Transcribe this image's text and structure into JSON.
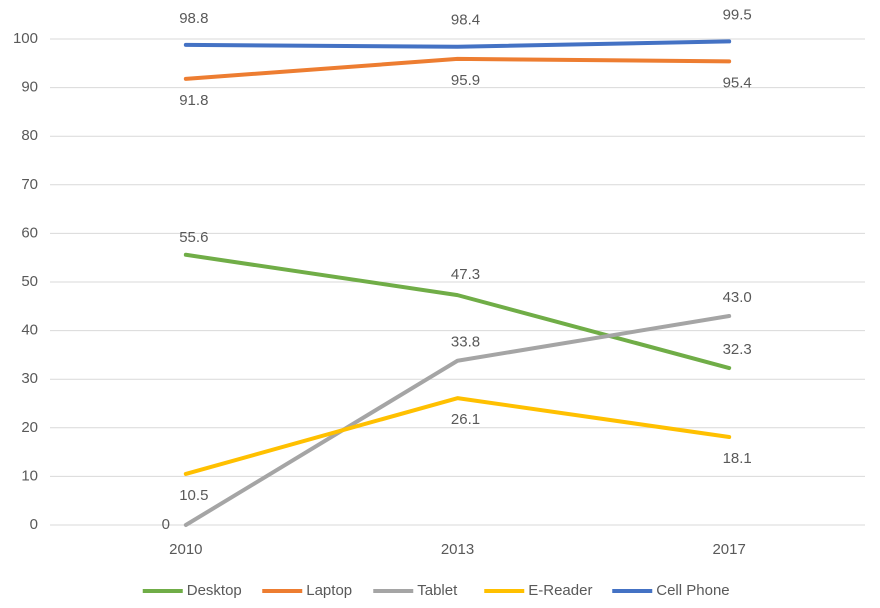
{
  "chart_data": {
    "type": "line",
    "categories": [
      "2010",
      "2013",
      "2017"
    ],
    "series": [
      {
        "name": "Desktop",
        "color": "#70ad47",
        "values": [
          55.6,
          47.3,
          32.3
        ]
      },
      {
        "name": "Laptop",
        "color": "#ed7d31",
        "values": [
          91.8,
          95.9,
          95.4
        ]
      },
      {
        "name": "Tablet",
        "color": "#a5a5a5",
        "values": [
          0,
          33.8,
          43.0
        ],
        "value_labels": [
          "0",
          "33.8",
          "43.0"
        ]
      },
      {
        "name": "E-Reader",
        "color": "#ffc000",
        "values": [
          10.5,
          26.1,
          18.1
        ]
      },
      {
        "name": "Cell Phone",
        "color": "#4472c4",
        "values": [
          98.8,
          98.4,
          99.5
        ]
      }
    ],
    "ylim": [
      0,
      100
    ],
    "yticks": [
      0,
      10,
      20,
      30,
      40,
      50,
      60,
      70,
      80,
      90,
      100
    ],
    "grid": true,
    "legend": "bottom"
  }
}
